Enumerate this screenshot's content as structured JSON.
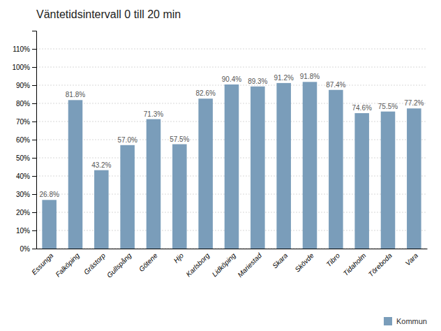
{
  "chart_data": {
    "type": "bar",
    "title": "Väntetidsintervall 0 till 20 min",
    "categories": [
      "Essunga",
      "Falköping",
      "Grästorp",
      "Gullspång",
      "Götene",
      "Hjo",
      "Karlsborg",
      "Lidköping",
      "Mariestad",
      "Skara",
      "Skövde",
      "Tibro",
      "Tidaholm",
      "Töreboda",
      "Vara"
    ],
    "series": [
      {
        "name": "Kommun",
        "color": "#7a9dba",
        "values": [
          26.8,
          81.8,
          43.2,
          57.0,
          71.3,
          57.5,
          82.6,
          90.4,
          89.3,
          91.2,
          91.8,
          87.4,
          74.6,
          75.5,
          77.2
        ],
        "value_labels": [
          "26.8%",
          "81.8%",
          "43.2%",
          "57.0%",
          "71.3%",
          "57.5%",
          "82.6%",
          "90.4%",
          "89.3%",
          "91.2%",
          "91.8%",
          "87.4%",
          "74.6%",
          "75.5%",
          "77.2%"
        ]
      }
    ],
    "ylim": [
      0,
      120
    ],
    "yticks": [
      {
        "value": 0,
        "label": "0%"
      },
      {
        "value": 10,
        "label": "10%"
      },
      {
        "value": 20,
        "label": "20%"
      },
      {
        "value": 30,
        "label": "30%"
      },
      {
        "value": 40,
        "label": "40%"
      },
      {
        "value": 50,
        "label": "50%"
      },
      {
        "value": 60,
        "label": "60%"
      },
      {
        "value": 70,
        "label": "70%"
      },
      {
        "value": 80,
        "label": "80%"
      },
      {
        "value": 90,
        "label": "90%"
      },
      {
        "value": 100,
        "label": "100%"
      },
      {
        "value": 110,
        "label": "110%"
      }
    ],
    "grid": true,
    "legend": "lower right",
    "data_labels": true
  }
}
